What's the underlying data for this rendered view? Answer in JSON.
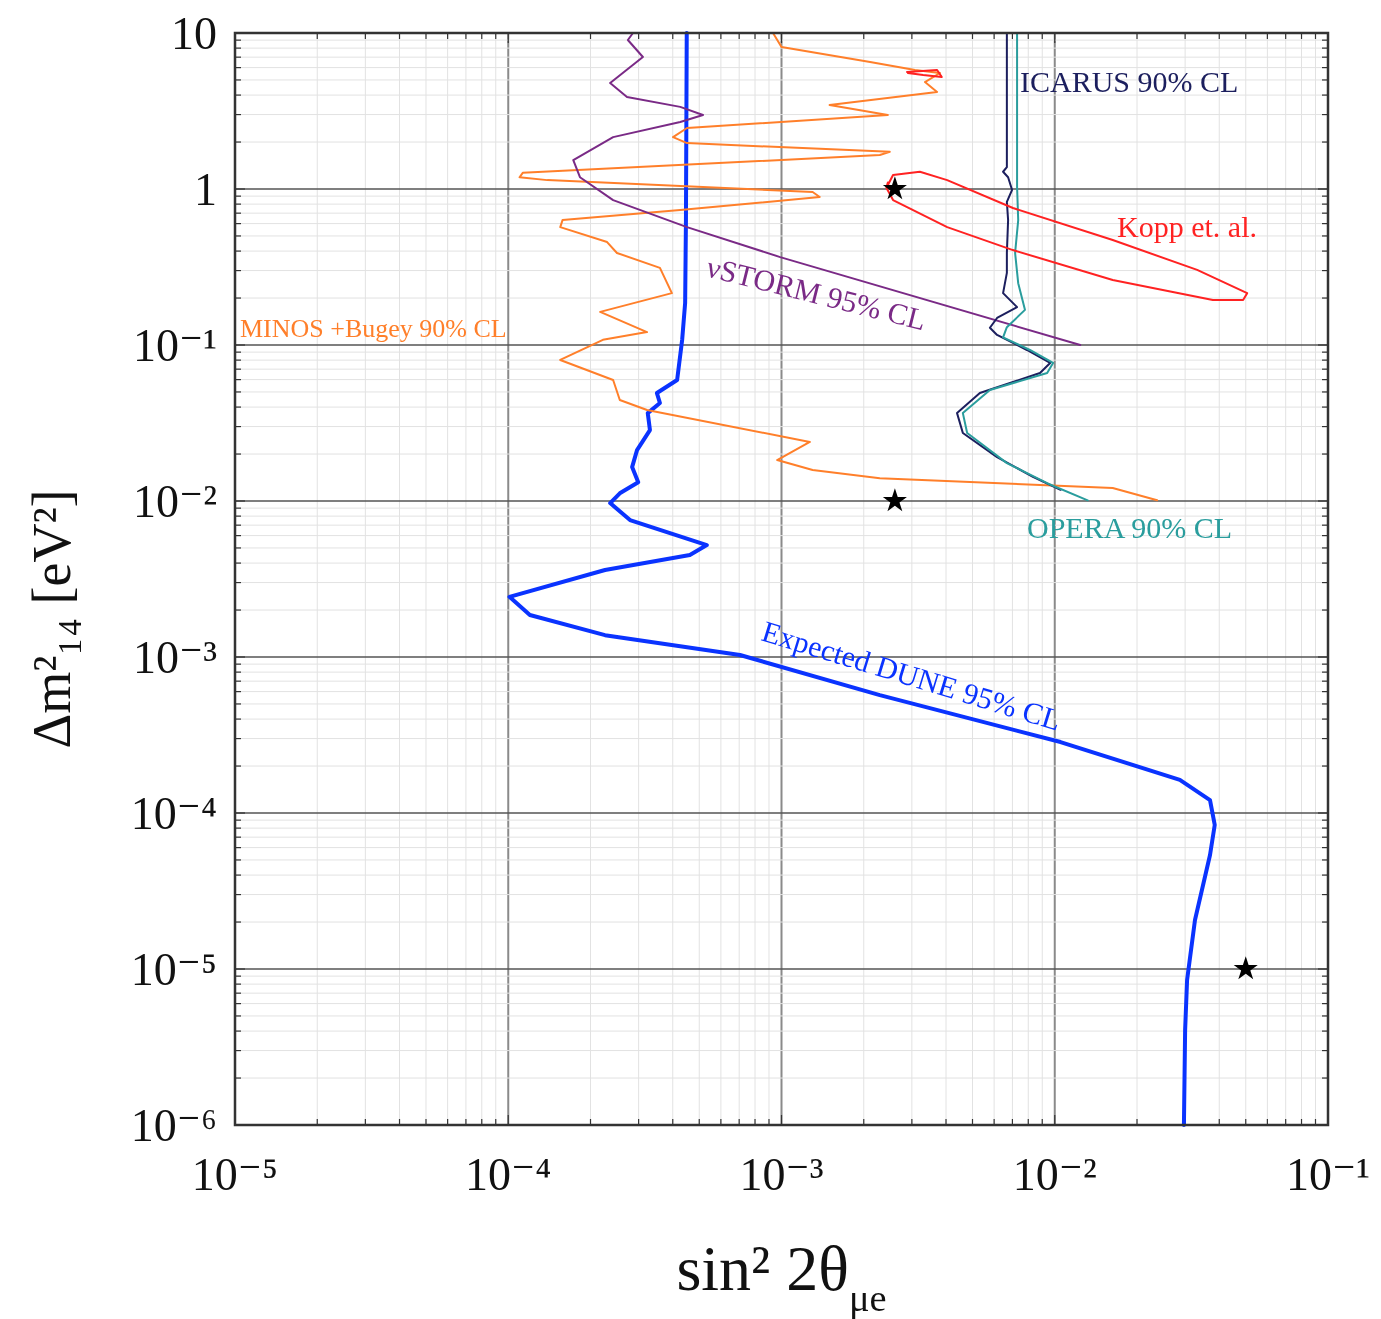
{
  "chart_data": {
    "type": "line",
    "log": "xy",
    "grid": true,
    "xlabel": "sin² 2θ$_{μe}$",
    "ylabel": "Δm²₁₄ [eV²]",
    "xlim": [
      1e-05,
      0.1
    ],
    "ylim": [
      1e-06,
      10
    ],
    "xticks": [
      {
        "value": 1e-05,
        "label": "10⁻⁵"
      },
      {
        "value": 2e-05,
        "label": null
      },
      {
        "value": 3e-05,
        "label": null
      },
      {
        "value": 4e-05,
        "label": null
      },
      {
        "value": 5e-05,
        "label": null
      },
      {
        "value": 6e-05,
        "label": null
      },
      {
        "value": 7e-05,
        "label": null
      },
      {
        "value": 8e-05,
        "label": null
      },
      {
        "value": 9e-05,
        "label": null
      },
      {
        "value": 0.0001,
        "label": "10⁻⁴"
      },
      {
        "value": 0.0002,
        "label": null
      },
      {
        "value": 0.0003,
        "label": null
      },
      {
        "value": 0.0004,
        "label": null
      },
      {
        "value": 0.0005,
        "label": null
      },
      {
        "value": 0.0006,
        "label": null
      },
      {
        "value": 0.0007,
        "label": null
      },
      {
        "value": 0.0008,
        "label": null
      },
      {
        "value": 0.0009,
        "label": null
      },
      {
        "value": 0.001,
        "label": "10⁻³"
      },
      {
        "value": 0.002,
        "label": null
      },
      {
        "value": 0.003,
        "label": null
      },
      {
        "value": 0.004,
        "label": null
      },
      {
        "value": 0.005,
        "label": null
      },
      {
        "value": 0.006,
        "label": null
      },
      {
        "value": 0.007,
        "label": null
      },
      {
        "value": 0.008,
        "label": null
      },
      {
        "value": 0.009,
        "label": null
      },
      {
        "value": 0.01,
        "label": "10⁻²"
      },
      {
        "value": 0.02,
        "label": null
      },
      {
        "value": 0.03,
        "label": null
      },
      {
        "value": 0.04,
        "label": null
      },
      {
        "value": 0.05,
        "label": null
      },
      {
        "value": 0.06,
        "label": null
      },
      {
        "value": 0.07,
        "label": null
      },
      {
        "value": 0.08,
        "label": null
      },
      {
        "value": 0.09,
        "label": null
      },
      {
        "value": 0.1,
        "label": "10⁻¹"
      }
    ],
    "yticks": [
      {
        "value": 1e-06,
        "label": "10⁻⁶"
      },
      {
        "value": 2e-06,
        "label": null
      },
      {
        "value": 3e-06,
        "label": null
      },
      {
        "value": 4e-06,
        "label": null
      },
      {
        "value": 5e-06,
        "label": null
      },
      {
        "value": 6e-06,
        "label": null
      },
      {
        "value": 7e-06,
        "label": null
      },
      {
        "value": 8e-06,
        "label": null
      },
      {
        "value": 9e-06,
        "label": null
      },
      {
        "value": 1e-05,
        "label": "10⁻⁵"
      },
      {
        "value": 2e-05,
        "label": null
      },
      {
        "value": 3e-05,
        "label": null
      },
      {
        "value": 4e-05,
        "label": null
      },
      {
        "value": 5e-05,
        "label": null
      },
      {
        "value": 6e-05,
        "label": null
      },
      {
        "value": 7e-05,
        "label": null
      },
      {
        "value": 8e-05,
        "label": null
      },
      {
        "value": 9e-05,
        "label": null
      },
      {
        "value": 0.0001,
        "label": "10⁻⁴"
      },
      {
        "value": 0.0002,
        "label": null
      },
      {
        "value": 0.0003,
        "label": null
      },
      {
        "value": 0.0004,
        "label": null
      },
      {
        "value": 0.0005,
        "label": null
      },
      {
        "value": 0.0006,
        "label": null
      },
      {
        "value": 0.0007,
        "label": null
      },
      {
        "value": 0.0008,
        "label": null
      },
      {
        "value": 0.0009,
        "label": null
      },
      {
        "value": 0.001,
        "label": "10⁻³"
      },
      {
        "value": 0.002,
        "label": null
      },
      {
        "value": 0.003,
        "label": null
      },
      {
        "value": 0.004,
        "label": null
      },
      {
        "value": 0.005,
        "label": null
      },
      {
        "value": 0.006,
        "label": null
      },
      {
        "value": 0.007,
        "label": null
      },
      {
        "value": 0.008,
        "label": null
      },
      {
        "value": 0.009,
        "label": null
      },
      {
        "value": 0.01,
        "label": "10⁻²"
      },
      {
        "value": 0.02,
        "label": null
      },
      {
        "value": 0.03,
        "label": null
      },
      {
        "value": 0.04,
        "label": null
      },
      {
        "value": 0.05,
        "label": null
      },
      {
        "value": 0.06,
        "label": null
      },
      {
        "value": 0.07,
        "label": null
      },
      {
        "value": 0.08,
        "label": null
      },
      {
        "value": 0.09,
        "label": null
      },
      {
        "value": 0.1,
        "label": "10⁻¹"
      },
      {
        "value": 0.2,
        "label": null
      },
      {
        "value": 0.3,
        "label": null
      },
      {
        "value": 0.4,
        "label": null
      },
      {
        "value": 0.5,
        "label": null
      },
      {
        "value": 0.6,
        "label": null
      },
      {
        "value": 0.7,
        "label": null
      },
      {
        "value": 0.8,
        "label": null
      },
      {
        "value": 0.9,
        "label": null
      },
      1,
      {
        "value": 2,
        "label": null
      },
      {
        "value": 3,
        "label": null
      },
      {
        "value": 4,
        "label": null
      },
      {
        "value": 5,
        "label": null
      },
      {
        "value": 6,
        "label": null
      },
      {
        "value": 7,
        "label": null
      },
      {
        "value": 8,
        "label": null
      },
      {
        "value": 9,
        "label": null
      },
      10
    ],
    "series": [
      {
        "name": "Expected DUNE 95% CL",
        "color": "#0a33ff",
        "x": [
          0.00045,
          0.000447,
          0.000444,
          0.000433,
          0.000415,
          0.00035,
          0.000359,
          0.000324,
          0.00033,
          0.000296,
          0.000284,
          0.000299,
          0.000256,
          0.000236,
          0.000279,
          0.000533,
          0.000462,
          0.000226,
          0.000101,
          0.00012,
          0.000226,
          0.000705,
          0.00229,
          0.0105,
          0.0287,
          0.037,
          0.0385,
          0.037,
          0.0326,
          0.0305,
          0.03,
          0.0297
        ],
        "values": [
          10,
          0.632,
          0.186,
          0.108,
          0.0597,
          0.0492,
          0.0425,
          0.0366,
          0.0285,
          0.0212,
          0.0165,
          0.0132,
          0.0112,
          0.0097,
          0.00755,
          0.00522,
          0.00451,
          0.00361,
          0.00243,
          0.00186,
          0.00138,
          0.00103,
          0.00057,
          0.000285,
          0.000163,
          0.000121,
          8.38e-05,
          5.38e-05,
          2.06e-05,
          8.5e-06,
          4.06e-06,
          1e-06
        ]
      },
      {
        "name": "MINOS +Bugey 90% CL",
        "color": "#ff7f2a",
        "x": [
          0.000931,
          0.001,
          0.00211,
          0.00308,
          0.0038,
          0.00335,
          0.00371,
          0.0015,
          0.00245,
          0.000451,
          0.000401,
          0.000451,
          0.00249,
          0.00229,
          0.000113,
          0.00011,
          0.000139,
          0.0013,
          0.00138,
          0.000426,
          0.000158,
          0.000155,
          0.00023,
          0.00025,
          0.000359,
          0.000397,
          0.000217,
          0.000322,
          0.000222,
          0.000155,
          0.000242,
          0.000256,
          0.000322,
          0.00127,
          0.000964,
          0.0013,
          0.00229,
          0.0163,
          0.0237
        ],
        "values": [
          10,
          8.13,
          6.52,
          5.79,
          5.54,
          4.85,
          4.19,
          3.45,
          2.98,
          2.46,
          2.15,
          1.97,
          1.73,
          1.65,
          1.27,
          1.19,
          1.14,
          0.957,
          0.889,
          0.733,
          0.632,
          0.57,
          0.457,
          0.389,
          0.312,
          0.215,
          0.163,
          0.121,
          0.108,
          0.0802,
          0.0597,
          0.0444,
          0.0383,
          0.0239,
          0.0183,
          0.0158,
          0.014,
          0.0121,
          0.0101
        ]
      },
      {
        "name": "νSTORM 95% CL",
        "color": "#7a2a86",
        "x": [
          0.000286,
          0.000274,
          0.000311,
          0.000236,
          0.000272,
          0.000426,
          0.000516,
          0.000426,
          0.000242,
          0.000173,
          0.000183,
          0.000242,
          0.000451,
          0.000989,
          0.0124
        ],
        "values": [
          10,
          9.02,
          7.02,
          4.78,
          3.89,
          3.36,
          2.98,
          2.69,
          2.15,
          1.53,
          1.19,
          0.849,
          0.57,
          0.366,
          0.1
        ]
      },
      {
        "name": "ICARUS 90% CL",
        "color": "#1c1f5e",
        "x": [
          0.00668,
          0.00668,
          0.00647,
          0.00675,
          0.00698,
          0.00668,
          0.00675,
          0.00668,
          0.00668,
          0.00647,
          0.00728,
          0.00615,
          0.00579,
          0.00615,
          0.00791,
          0.00962,
          0.00883,
          0.00532,
          0.00439,
          0.00461,
          0.00615,
          0.00832,
          0.0105
        ],
        "values": [
          10,
          1.38,
          1.29,
          1.19,
          0.986,
          0.826,
          0.632,
          0.389,
          0.29,
          0.215,
          0.175,
          0.149,
          0.129,
          0.116,
          0.0929,
          0.0767,
          0.0662,
          0.0492,
          0.0366,
          0.0273,
          0.0191,
          0.0143,
          0.0118
        ]
      },
      {
        "name": "OPERA 90% CL",
        "color": "#2a9d9d",
        "x": [
          0.00728,
          0.00728,
          0.00735,
          0.00716,
          0.00735,
          0.00778,
          0.00668,
          0.00647,
          0.00811,
          0.00986,
          0.00938,
          0.00579,
          0.00461,
          0.00478,
          0.00668,
          0.00938,
          0.0132
        ],
        "values": [
          10,
          1.03,
          0.632,
          0.389,
          0.249,
          0.168,
          0.13,
          0.112,
          0.0929,
          0.0767,
          0.0662,
          0.0515,
          0.0366,
          0.0273,
          0.0175,
          0.013,
          0.0101
        ]
      },
      {
        "name": "Kopp et. al.",
        "color": "#ff2222",
        "x": [
          0.00243,
          0.00256,
          0.00321,
          0.00404,
          0.00703,
          0.0163,
          0.0332,
          0.0506,
          0.0489,
          0.0379,
          0.0163,
          0.00703,
          0.00404,
          0.00256,
          0.00242,
          0.00245
        ],
        "values": [
          1.03,
          1.23,
          1.29,
          1.14,
          0.755,
          0.471,
          0.303,
          0.215,
          0.194,
          0.194,
          0.261,
          0.406,
          0.57,
          0.849,
          1.02,
          1.1
        ]
      },
      {
        "color": "#ff2222",
        "x": [
          0.00288,
          0.00371,
          0.00386,
          0.0033,
          0.0029
        ],
        "values": [
          5.62,
          5.79,
          5.22,
          5.38,
          5.55
        ]
      },
      {
        "type": "scatter",
        "marker": "star",
        "color": "#000000",
        "x": [
          0.0026,
          0.0026,
          0.05
        ],
        "values": [
          1,
          0.01,
          1e-05
        ]
      }
    ]
  }
}
